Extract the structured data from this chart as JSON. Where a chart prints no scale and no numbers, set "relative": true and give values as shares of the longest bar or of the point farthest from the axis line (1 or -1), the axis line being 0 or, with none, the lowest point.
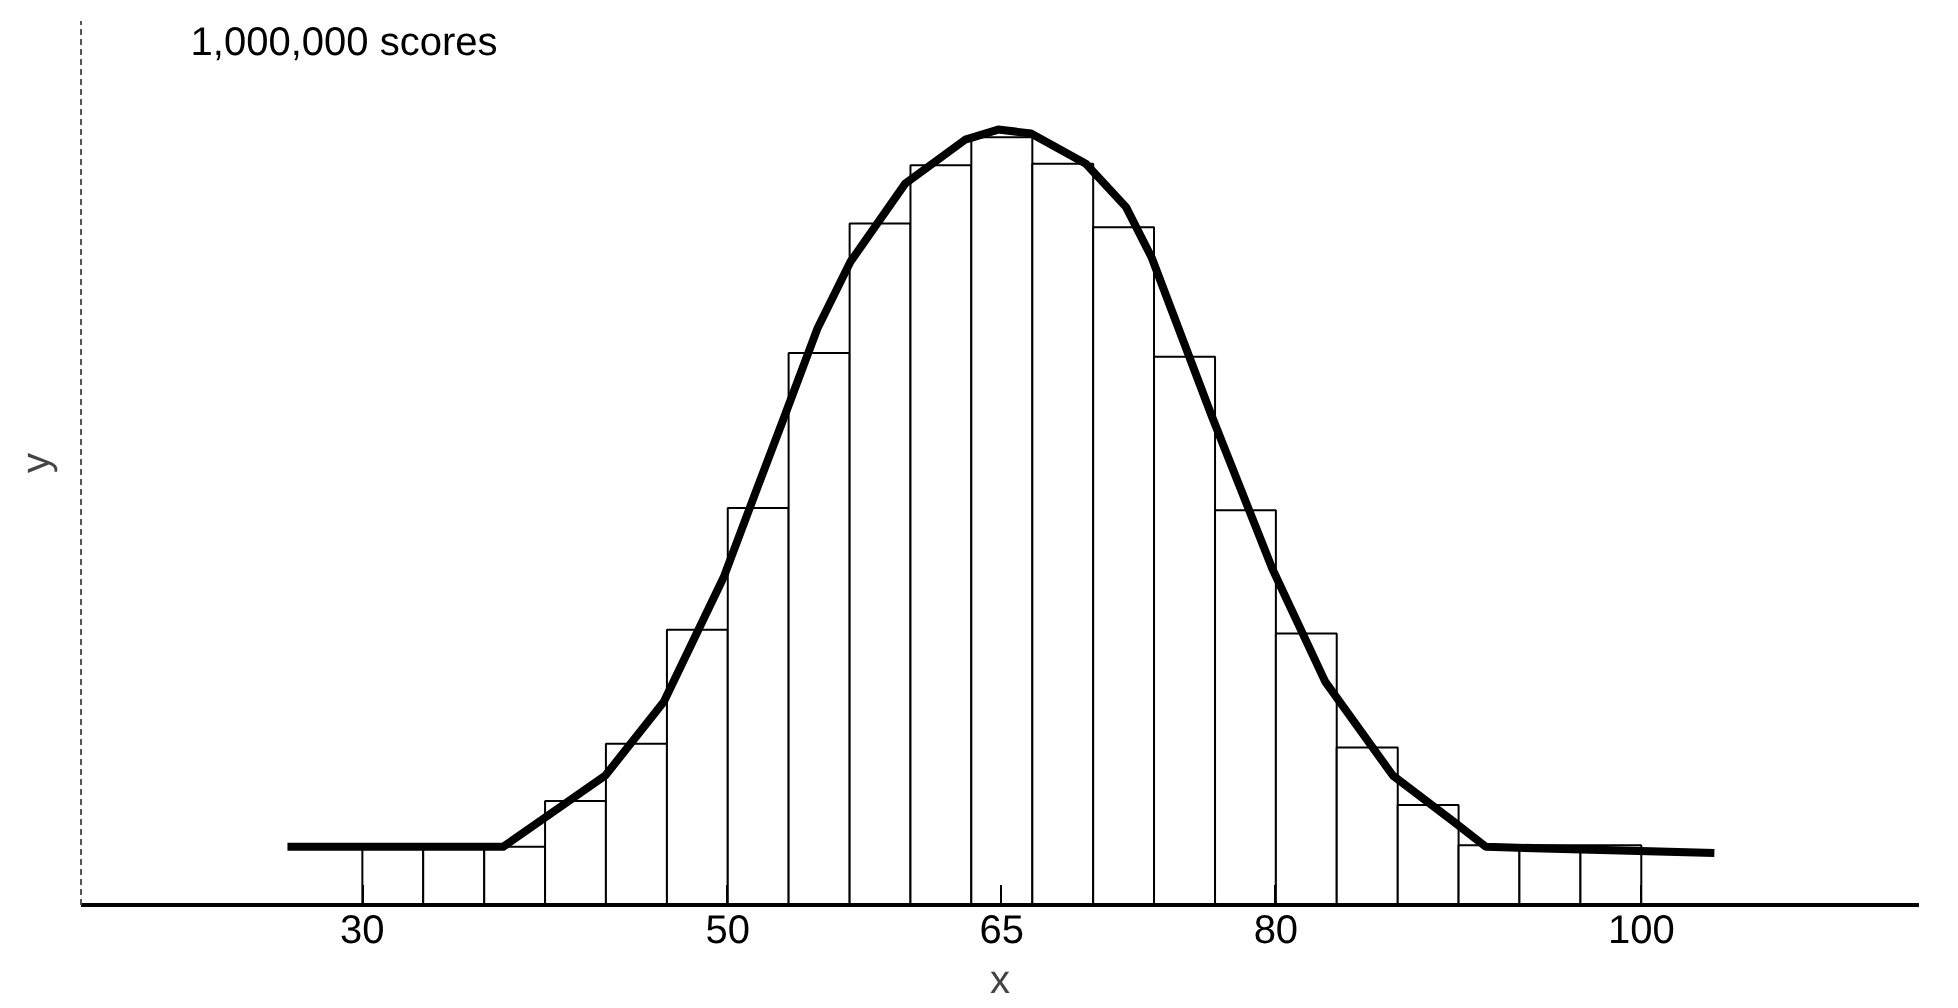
{
  "chart_data": {
    "type": "histogram",
    "relative": true,
    "xlabel": "x",
    "ylabel": "y",
    "annotations": [
      "1,000,000 scores"
    ],
    "bins": [
      30,
      33.33,
      36.67,
      40,
      43.33,
      46.67,
      50,
      53.33,
      56.67,
      60,
      63.33,
      66.67,
      70,
      73.33,
      76.67,
      80,
      83.33,
      86.67,
      90,
      93.33,
      96.67,
      100
    ],
    "values": [
      0.075,
      0.075,
      0.075,
      0.134,
      0.208,
      0.355,
      0.512,
      0.712,
      0.879,
      0.954,
      0.99,
      0.956,
      0.874,
      0.707,
      0.509,
      0.35,
      0.203,
      0.129,
      0.077,
      0.077,
      0.077
    ],
    "xlim": [
      14.6,
      115.2
    ],
    "xticks": [
      30,
      50,
      65,
      80,
      100
    ],
    "grid": false,
    "series": [
      {
        "type": "line",
        "color": "#000000",
        "x": [
          25.9,
          37.7,
          40.2,
          43.3,
          46.5,
          49.8,
          51.6,
          53.1,
          54.9,
          56.7,
          59.7,
          63.0,
          64.8,
          66.6,
          69.6,
          71.8,
          73.2,
          76.5,
          79.8,
          82.7,
          86.4,
          89.7,
          91.5,
          104.0
        ],
        "values": [
          0.075,
          0.075,
          0.116,
          0.167,
          0.262,
          0.424,
          0.537,
          0.63,
          0.743,
          0.829,
          0.93,
          0.987,
          1.0,
          0.995,
          0.956,
          0.9,
          0.835,
          0.63,
          0.434,
          0.288,
          0.167,
          0.108,
          0.075,
          0.067
        ]
      }
    ]
  }
}
